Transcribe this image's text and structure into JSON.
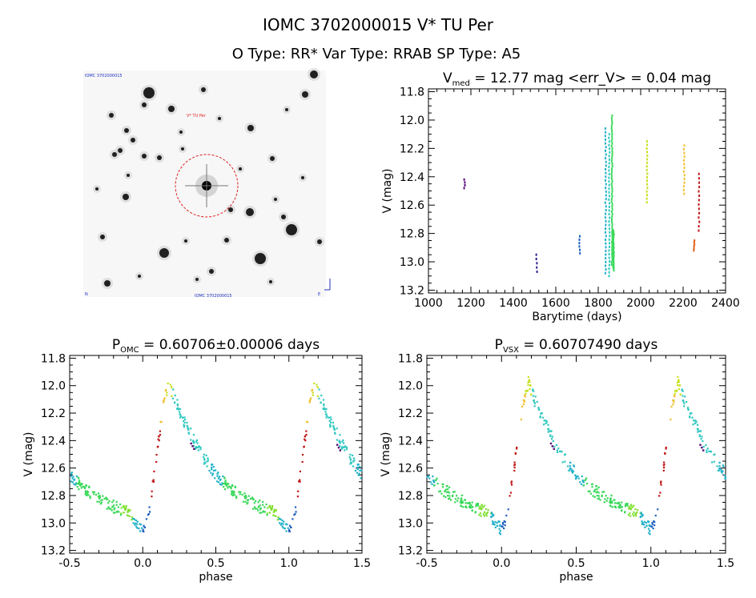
{
  "header": {
    "title": "IOMC 3702000015    V* TU Per",
    "subtitle": "O Type: RR*  Var Type: RRAB  SP Type: A5"
  },
  "image_panel": {
    "top_left_label": "IOMC 3702000015",
    "target_label": "V* TU Per",
    "bottom_center_label": "IOMC 3702000015",
    "bottom_left_label": "N",
    "bottom_right_label": "E"
  },
  "colors": {
    "axis": "#000000",
    "circle": "#dd1f1f",
    "epochs": [
      "#5a0a7a",
      "#2a1f8f",
      "#2060c0",
      "#20b0c8",
      "#30c8c0",
      "#38d858",
      "#80e030",
      "#c8e020",
      "#f0c030",
      "#e06018",
      "#c01818"
    ]
  },
  "chart_data": [
    {
      "id": "lightcurve_time",
      "type": "scatter",
      "title_main": "V",
      "title_sub": "med",
      "title_rest": " = 12.77 mag <err_V> = 0.04 mag",
      "xlabel": "Barytime (days)",
      "ylabel": "V (mag)",
      "xlim": [
        1000,
        2400
      ],
      "ylim": [
        13.22,
        11.78
      ],
      "xticks": [
        1000,
        1200,
        1400,
        1600,
        1800,
        2000,
        2200,
        2400
      ],
      "xtick_labels": [
        "1000",
        "1200",
        "1400",
        "1600",
        "1800",
        "2000",
        "2200",
        "2400"
      ],
      "yticks": [
        11.8,
        12.0,
        12.2,
        12.4,
        12.6,
        12.8,
        13.0,
        13.2
      ],
      "ytick_labels": [
        "11.8",
        "12.0",
        "12.2",
        "12.4",
        "12.6",
        "12.8",
        "13.0",
        "13.2"
      ],
      "clusters": [
        {
          "t": 1170,
          "min": 12.42,
          "max": 12.48,
          "n": 4,
          "color": 0
        },
        {
          "t": 1510,
          "min": 12.95,
          "max": 13.07,
          "n": 5,
          "color": 1
        },
        {
          "t": 1712,
          "min": 12.82,
          "max": 12.94,
          "n": 6,
          "color": 2
        },
        {
          "t": 1835,
          "min": 12.06,
          "max": 13.08,
          "n": 40,
          "color": 3
        },
        {
          "t": 1852,
          "min": 12.1,
          "max": 13.1,
          "n": 40,
          "color": 4
        },
        {
          "t": 1865,
          "min": 11.97,
          "max": 13.02,
          "n": 60,
          "color": 5
        },
        {
          "t": 1872,
          "min": 12.78,
          "max": 13.06,
          "n": 40,
          "color": 5
        },
        {
          "t": 2030,
          "min": 12.15,
          "max": 12.58,
          "n": 18,
          "color": 7
        },
        {
          "t": 2205,
          "min": 12.18,
          "max": 12.52,
          "n": 14,
          "color": 8
        },
        {
          "t": 2252,
          "min": 12.85,
          "max": 12.92,
          "n": 6,
          "color": 9
        },
        {
          "t": 2275,
          "min": 12.38,
          "max": 12.78,
          "n": 14,
          "color": 10
        }
      ]
    },
    {
      "id": "phase_omc",
      "type": "scatter",
      "title_main": "P",
      "title_sub": "OMC",
      "title_rest": " = 0.60706±0.00006 days",
      "xlabel": "phase",
      "ylabel": "V (mag)",
      "xlim": [
        -0.5,
        1.5
      ],
      "ylim": [
        13.22,
        11.78
      ],
      "xticks": [
        -0.5,
        0.0,
        0.5,
        1.0,
        1.5
      ],
      "xtick_labels": [
        "-0.5",
        "0.0",
        "0.5",
        "1.0",
        "1.5"
      ],
      "yticks": [
        11.8,
        12.0,
        12.2,
        12.4,
        12.6,
        12.8,
        13.0,
        13.2
      ],
      "ytick_labels": [
        "11.8",
        "12.0",
        "12.2",
        "12.4",
        "12.6",
        "12.8",
        "13.0",
        "13.2"
      ],
      "curve": {
        "x": [
          0.0,
          0.03,
          0.06,
          0.1,
          0.15,
          0.18,
          0.22,
          0.3,
          0.4,
          0.5,
          0.6,
          0.7,
          0.8,
          0.85,
          0.9,
          0.95,
          1.0
        ],
        "y": [
          13.05,
          13.0,
          12.8,
          12.45,
          12.1,
          11.98,
          12.1,
          12.3,
          12.5,
          12.65,
          12.75,
          12.82,
          12.88,
          12.9,
          12.92,
          12.98,
          13.05
        ]
      }
    },
    {
      "id": "phase_vsx",
      "type": "scatter",
      "title_main": "P",
      "title_sub": "VSX",
      "title_rest": " = 0.60707490 days",
      "xlabel": "phase",
      "ylabel": "V (mag)",
      "xlim": [
        -0.5,
        1.5
      ],
      "ylim": [
        13.22,
        11.78
      ],
      "xticks": [
        -0.5,
        0.0,
        0.5,
        1.0,
        1.5
      ],
      "xtick_labels": [
        "-0.5",
        "0.0",
        "0.5",
        "1.0",
        "1.5"
      ],
      "yticks": [
        11.8,
        12.0,
        12.2,
        12.4,
        12.6,
        12.8,
        13.0,
        13.2
      ],
      "ytick_labels": [
        "11.8",
        "12.0",
        "12.2",
        "12.4",
        "12.6",
        "12.8",
        "13.0",
        "13.2"
      ],
      "curve": {
        "x": [
          0.0,
          0.03,
          0.06,
          0.1,
          0.15,
          0.18,
          0.22,
          0.3,
          0.4,
          0.5,
          0.6,
          0.7,
          0.8,
          0.85,
          0.9,
          0.95,
          1.0
        ],
        "y": [
          13.05,
          13.0,
          12.8,
          12.45,
          12.1,
          11.98,
          12.1,
          12.3,
          12.5,
          12.65,
          12.75,
          12.82,
          12.88,
          12.9,
          12.92,
          12.98,
          13.05
        ]
      }
    }
  ]
}
